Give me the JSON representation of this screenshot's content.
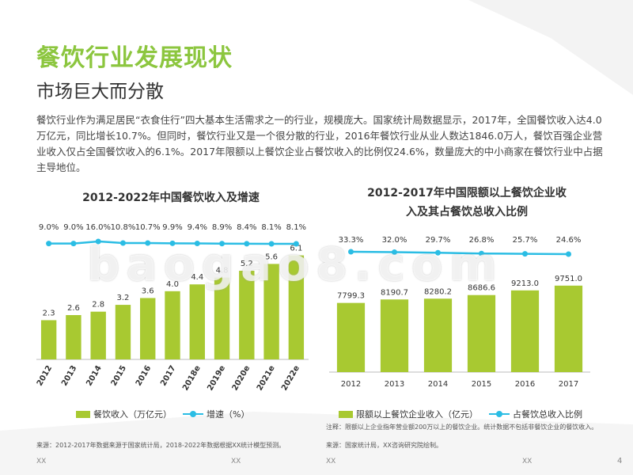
{
  "title": "餐饮行业发展现状",
  "subtitle": "市场巨大而分散",
  "intro": "餐饮行业作为满足居民“衣食住行”四大基本生活需求之一的行业，规模庞大。国家统计局数据显示，2017年，全国餐饮收入达4.0万亿元，同比增长10.7%。但同时，餐饮行业又是一个很分散的行业，2016年餐饮行业从业人数达1846.0万人，餐饮百强企业营业收入仅占全国餐饮收入的6.1%。2017年限额以上餐饮企业占餐饮收入的比例仅24.6%，数量庞大的中小商家在餐饮行业中占据主导地位。",
  "colors": {
    "accent": "#8cc63f",
    "bar": "#a8c931",
    "line": "#2bbde4"
  },
  "chart_data": [
    {
      "type": "bar",
      "title": "2012-2022年中国餐饮收入及增速",
      "categories": [
        "2012",
        "2013",
        "2014",
        "2015",
        "2016",
        "2017",
        "2018e",
        "2019e",
        "2020e",
        "2021e",
        "2022e"
      ],
      "series": [
        {
          "name": "餐饮收入（万亿元）",
          "type": "bar",
          "values": [
            2.3,
            2.6,
            2.8,
            3.2,
            3.6,
            4.0,
            4.4,
            4.8,
            5.2,
            5.6,
            6.1
          ],
          "labels": [
            "2.3",
            "2.6",
            "2.8",
            "3.2",
            "3.6",
            "4.0",
            "4.4",
            "4.8",
            "5.2",
            "5.6",
            "6.1"
          ]
        },
        {
          "name": "增速（%）",
          "type": "line",
          "values": [
            9.0,
            9.0,
            16.0,
            10.8,
            10.7,
            9.9,
            9.4,
            8.9,
            8.4,
            8.1,
            8.1
          ],
          "labels": [
            "9.0%",
            "9.0%",
            "16.0%",
            "10.8%",
            "10.7%",
            "9.9%",
            "9.4%",
            "8.9%",
            "8.4%",
            "8.1%",
            "8.1%"
          ]
        }
      ],
      "ylim": [
        0,
        6.5
      ],
      "legend": "bottom",
      "source": "来源：2012-2017年数据来源于国家统计局，2018-2022年数据根据XX统计模型预测。"
    },
    {
      "type": "bar",
      "title_line1": "2012-2017年中国限额以上餐饮企业收",
      "title_line2": "入及其占餐饮总收入比例",
      "categories": [
        "2012",
        "2013",
        "2014",
        "2015",
        "2016",
        "2017"
      ],
      "series": [
        {
          "name": "限额以上餐饮企业收入（亿元）",
          "type": "bar",
          "values": [
            7799.3,
            8190.7,
            8280.2,
            8686.6,
            9213.0,
            9751.0
          ],
          "labels": [
            "7799.3",
            "8190.7",
            "8280.2",
            "8686.6",
            "9213.0",
            "9751.0"
          ]
        },
        {
          "name": "占餐饮总收入比例",
          "type": "line",
          "values": [
            33.3,
            32.0,
            29.7,
            26.8,
            25.7,
            24.6
          ],
          "labels": [
            "33.3%",
            "32.0%",
            "29.7%",
            "26.8%",
            "25.7%",
            "24.6%"
          ]
        }
      ],
      "ylim": [
        0,
        10000
      ],
      "legend": "bottom",
      "note": "注释：限额以上企业指年营业额200万以上的餐饮企业。统计数据不包括非餐饮企业的餐饮收入。",
      "source": "来源：国家统计局，XX咨询研究院绘制。"
    }
  ],
  "watermark": "baogao8.com",
  "footer": {
    "left": "XX",
    "mid": "XX",
    "mid2": "XX",
    "right": "XX",
    "page": "4"
  }
}
